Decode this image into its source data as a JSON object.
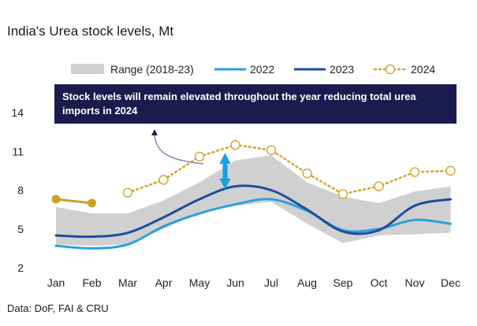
{
  "chart_data": {
    "type": "line",
    "title": "India's Urea stock levels, Mt",
    "xlabel": "",
    "ylabel": "",
    "categories": [
      "Jan",
      "Feb",
      "Mar",
      "Apr",
      "May",
      "Jun",
      "Jul",
      "Aug",
      "Sep",
      "Oct",
      "Nov",
      "Dec"
    ],
    "yticks": [
      2,
      5,
      8,
      11,
      14
    ],
    "ylim": [
      2,
      14
    ],
    "grid": false,
    "legend_position": "top",
    "range": {
      "name": "Range (2018-23)",
      "color": "#d0d0d0",
      "low": [
        3.8,
        3.7,
        3.8,
        5.0,
        6.3,
        6.8,
        7.1,
        5.4,
        3.9,
        4.5,
        4.6,
        4.7
      ],
      "high": [
        6.7,
        6.2,
        6.2,
        7.2,
        8.6,
        10.3,
        10.7,
        8.6,
        7.5,
        7.0,
        7.9,
        8.3
      ]
    },
    "series": [
      {
        "name": "2022",
        "color": "#2aa0dd",
        "style": "solid",
        "values": [
          3.7,
          3.5,
          3.8,
          5.2,
          6.2,
          6.9,
          7.3,
          6.4,
          4.9,
          5.0,
          5.7,
          5.4
        ]
      },
      {
        "name": "2023",
        "color": "#1f4c9b",
        "style": "solid",
        "values": [
          4.5,
          4.4,
          4.7,
          5.9,
          7.3,
          8.3,
          8.0,
          6.5,
          4.8,
          4.9,
          6.8,
          7.3
        ]
      },
      {
        "name": "2024",
        "color": "#d4a52a",
        "style": "dotted-markers",
        "values": [
          null,
          null,
          7.8,
          8.8,
          10.6,
          11.5,
          11.1,
          9.3,
          7.7,
          8.3,
          9.4,
          9.5
        ]
      },
      {
        "name": "",
        "color": "#c9a227",
        "style": "solid-filled-markers",
        "values": [
          7.3,
          7.0,
          null,
          null,
          null,
          null,
          null,
          null,
          null,
          null,
          null,
          null
        ]
      }
    ],
    "annotations": [
      {
        "text": "Stock levels will remain elevated throughout the year reducing total urea imports in 2024"
      }
    ]
  },
  "source": "Data: DoF, FAI & CRU",
  "colors": {
    "callout_bg": "#1b1b4d",
    "arrow": "#1a9ee0"
  }
}
